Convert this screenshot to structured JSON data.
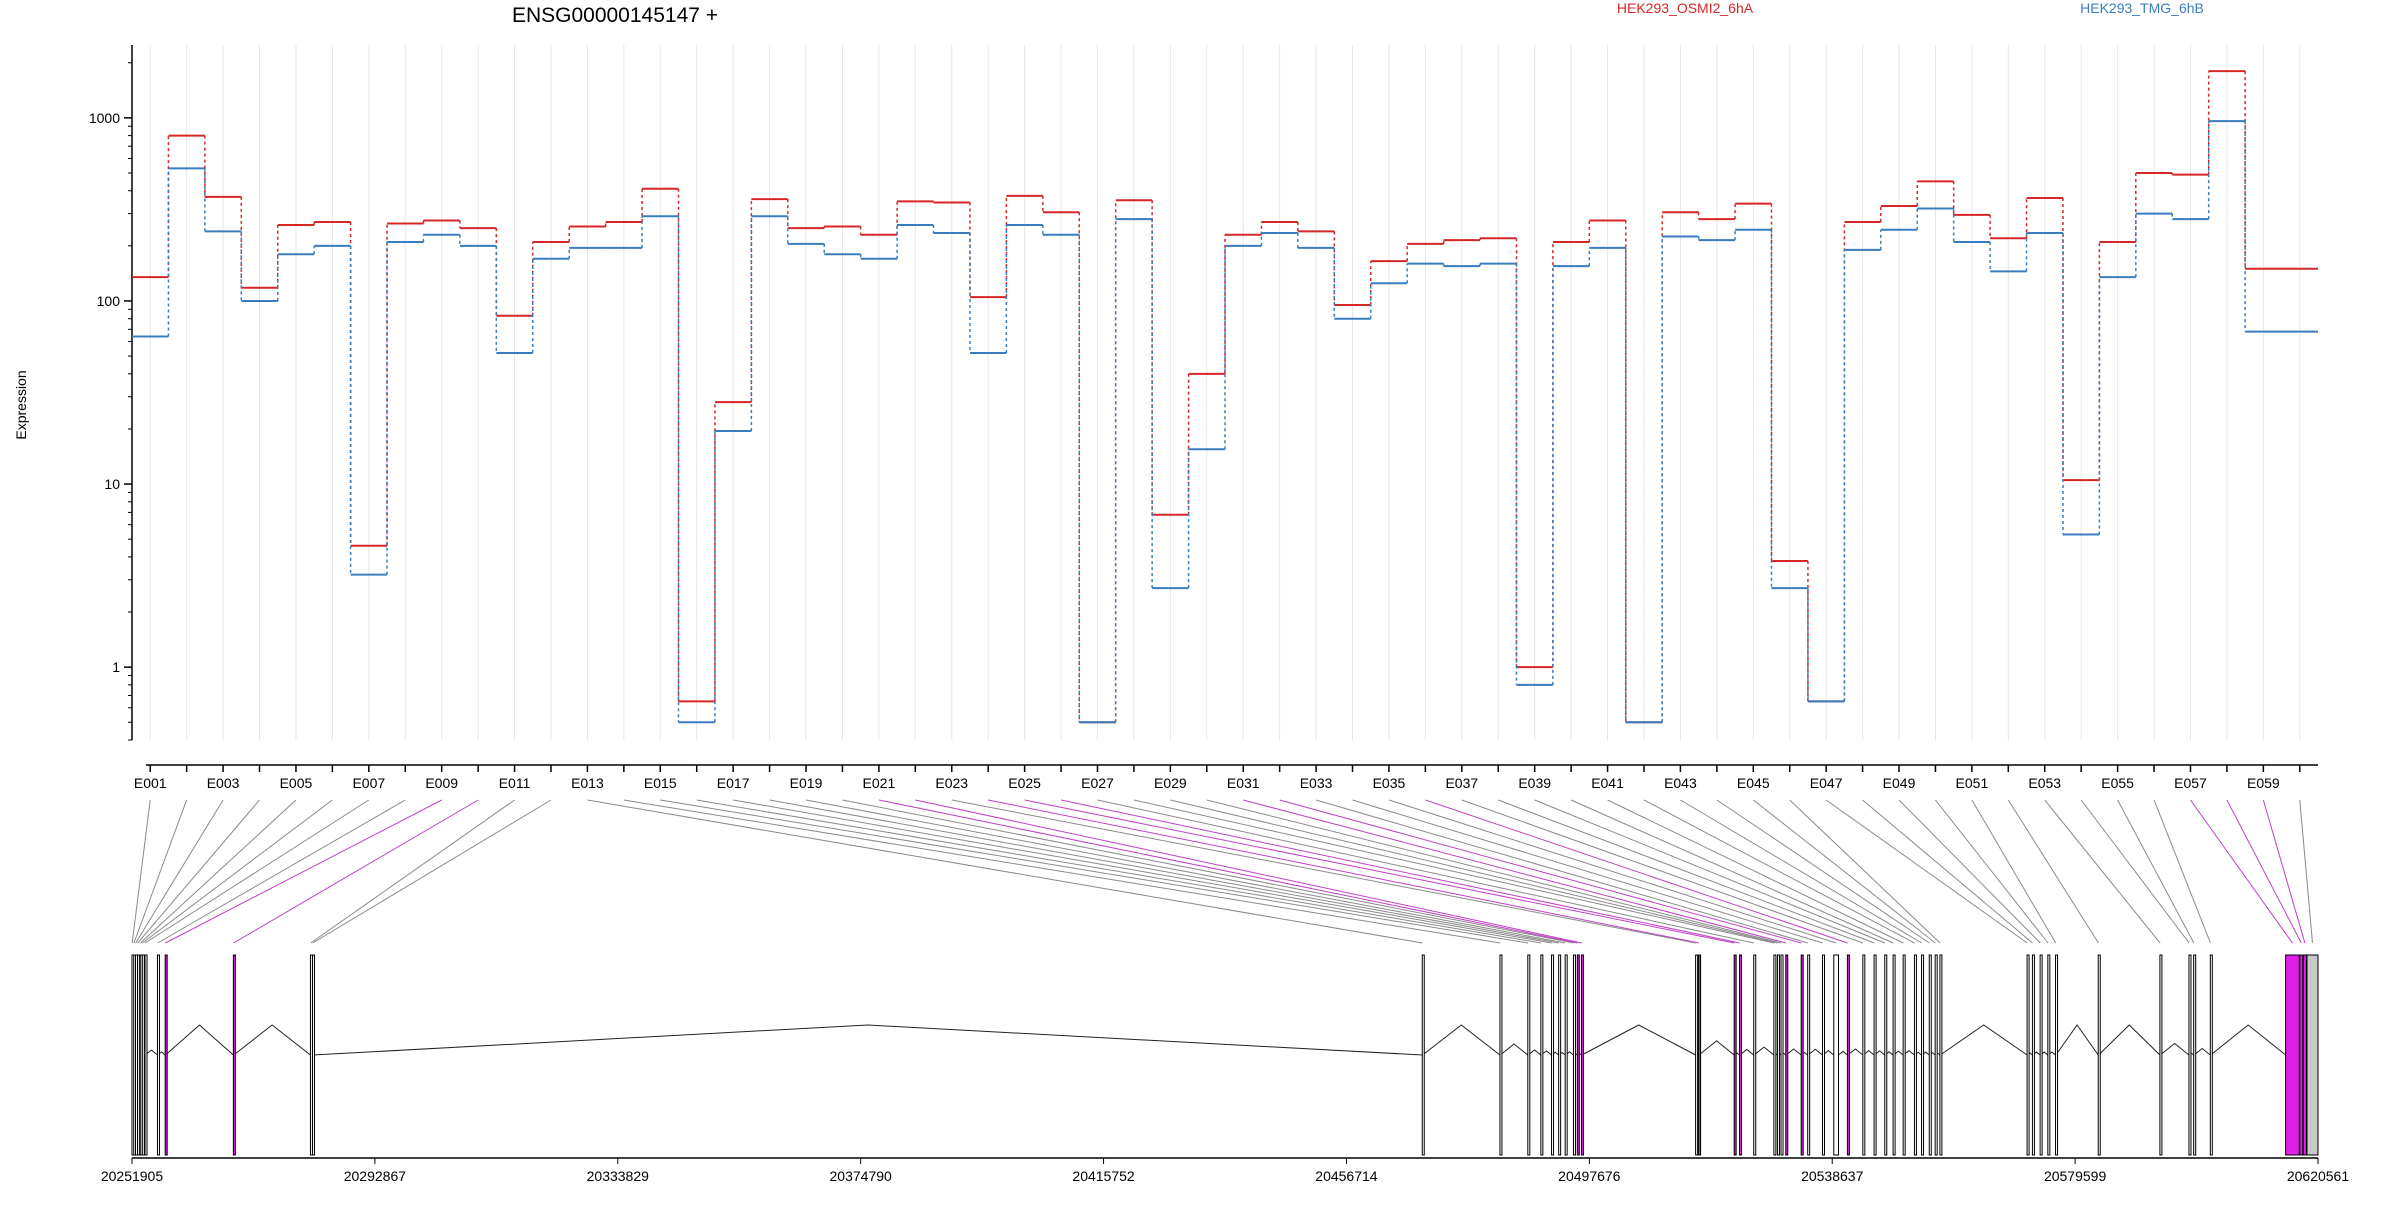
{
  "chart_data": {
    "type": "line",
    "title": "ENSG00000145147 +",
    "ylabel": "Expression",
    "y_scale": "log",
    "ylim": [
      0.4,
      2500
    ],
    "y_ticks": [
      1,
      10,
      100,
      1000
    ],
    "y_tick_labels": [
      "1",
      "10",
      "100",
      "1000"
    ],
    "categories": [
      "E001",
      "E002",
      "E003",
      "E004",
      "E005",
      "E006",
      "E007",
      "E008",
      "E009",
      "E010",
      "E011",
      "E012",
      "E013",
      "E014",
      "E015",
      "E016",
      "E017",
      "E018",
      "E019",
      "E020",
      "E021",
      "E022",
      "E023",
      "E024",
      "E025",
      "E026",
      "E027",
      "E028",
      "E029",
      "E030",
      "E031",
      "E032",
      "E033",
      "E034",
      "E035",
      "E036",
      "E037",
      "E038",
      "E039",
      "E040",
      "E041",
      "E042",
      "E043",
      "E044",
      "E045",
      "E046",
      "E047",
      "E048",
      "E049",
      "E050",
      "E051",
      "E052",
      "E053",
      "E054",
      "E055",
      "E056",
      "E057",
      "E058",
      "E059",
      "E060"
    ],
    "labeled_categories": [
      "E001",
      "E003",
      "E005",
      "E007",
      "E009",
      "E011",
      "E013",
      "E015",
      "E017",
      "E019",
      "E021",
      "E023",
      "E025",
      "E027",
      "E029",
      "E031",
      "E033",
      "E035",
      "E037",
      "E039",
      "E041",
      "E043",
      "E045",
      "E047",
      "E049",
      "E051",
      "E053",
      "E055",
      "E057",
      "E059"
    ],
    "series": [
      {
        "name": "HEK293_OSMI2_6hA",
        "color": "#d62728",
        "values": [
          135,
          800,
          370,
          118,
          260,
          270,
          4.6,
          265,
          275,
          250,
          83,
          210,
          255,
          270,
          410,
          0.65,
          28,
          360,
          250,
          255,
          230,
          350,
          345,
          105,
          375,
          305,
          0.5,
          355,
          6.8,
          40,
          230,
          270,
          240,
          95,
          165,
          205,
          215,
          220,
          1.0,
          210,
          275,
          0.5,
          305,
          280,
          340,
          3.8,
          0.65,
          270,
          330,
          450,
          295,
          220,
          365,
          10.5,
          210,
          500,
          490,
          1800,
          150,
          150
        ]
      },
      {
        "name": "HEK293_TMG_6hB",
        "color": "#3a7dbf",
        "values": [
          64,
          530,
          240,
          100,
          180,
          200,
          3.2,
          210,
          230,
          200,
          52,
          170,
          195,
          195,
          290,
          0.5,
          19.5,
          290,
          205,
          180,
          170,
          260,
          235,
          52,
          260,
          230,
          0.5,
          280,
          2.7,
          15.5,
          200,
          235,
          195,
          80,
          125,
          160,
          155,
          160,
          0.8,
          155,
          195,
          0.5,
          225,
          215,
          245,
          2.7,
          0.65,
          190,
          245,
          320,
          210,
          145,
          235,
          5.3,
          135,
          300,
          280,
          960,
          68,
          68
        ]
      }
    ],
    "highlighted_exons": [
      "E009",
      "E010",
      "E021",
      "E022",
      "E024",
      "E025",
      "E026",
      "E031",
      "E032",
      "E036",
      "E057",
      "E058",
      "E059"
    ],
    "genomic_axis": {
      "ticks": [
        20251905,
        20292867,
        20333829,
        20374790,
        20415752,
        20456714,
        20497676,
        20538637,
        20579599,
        20620561
      ],
      "range": [
        20251905,
        20620561
      ],
      "exons": [
        {
          "id": "E001",
          "start": 20251905,
          "end": 20251960
        },
        {
          "id": "E002",
          "start": 20252200,
          "end": 20252260
        },
        {
          "id": "E003",
          "start": 20252500,
          "end": 20252560
        },
        {
          "id": "E004",
          "start": 20252850,
          "end": 20252900
        },
        {
          "id": "E005",
          "start": 20253300,
          "end": 20253350
        },
        {
          "id": "E006",
          "start": 20253650,
          "end": 20253700
        },
        {
          "id": "E007",
          "start": 20254100,
          "end": 20254150
        },
        {
          "id": "E008",
          "start": 20256200,
          "end": 20256250
        },
        {
          "id": "E009",
          "start": 20257500,
          "end": 20257560
        },
        {
          "id": "E010",
          "start": 20269000,
          "end": 20269060
        },
        {
          "id": "E011",
          "start": 20282000,
          "end": 20282080
        },
        {
          "id": "E012",
          "start": 20282350,
          "end": 20282400
        },
        {
          "id": "E013",
          "start": 20469500,
          "end": 20469560
        },
        {
          "id": "E014",
          "start": 20482600,
          "end": 20482660
        },
        {
          "id": "E015",
          "start": 20487300,
          "end": 20487360
        },
        {
          "id": "E016",
          "start": 20489500,
          "end": 20489560
        },
        {
          "id": "E017",
          "start": 20491300,
          "end": 20491360
        },
        {
          "id": "E018",
          "start": 20492500,
          "end": 20492560
        },
        {
          "id": "E019",
          "start": 20493600,
          "end": 20493660
        },
        {
          "id": "E020",
          "start": 20495000,
          "end": 20495060
        },
        {
          "id": "E021",
          "start": 20495650,
          "end": 20495700
        },
        {
          "id": "E022",
          "start": 20496350,
          "end": 20496400
        },
        {
          "id": "E023",
          "start": 20515600,
          "end": 20515660
        },
        {
          "id": "E024",
          "start": 20516100,
          "end": 20516160
        },
        {
          "id": "E025",
          "start": 20522100,
          "end": 20522160
        },
        {
          "id": "E026",
          "start": 20523000,
          "end": 20523060
        },
        {
          "id": "E027",
          "start": 20525400,
          "end": 20525460
        },
        {
          "id": "E028",
          "start": 20528800,
          "end": 20528900
        },
        {
          "id": "E029",
          "start": 20529400,
          "end": 20529460
        },
        {
          "id": "E030",
          "start": 20530000,
          "end": 20530060
        },
        {
          "id": "E031",
          "start": 20530800,
          "end": 20530860
        },
        {
          "id": "E032",
          "start": 20533400,
          "end": 20533460
        },
        {
          "id": "E033",
          "start": 20534500,
          "end": 20534560
        },
        {
          "id": "E034",
          "start": 20537000,
          "end": 20537060
        },
        {
          "id": "E035",
          "start": 20538900,
          "end": 20539700
        },
        {
          "id": "E036",
          "start": 20541200,
          "end": 20541260
        },
        {
          "id": "E037",
          "start": 20543800,
          "end": 20543860
        },
        {
          "id": "E038",
          "start": 20545700,
          "end": 20545760
        },
        {
          "id": "E039",
          "start": 20547500,
          "end": 20547560
        },
        {
          "id": "E040",
          "start": 20548900,
          "end": 20548960
        },
        {
          "id": "E041",
          "start": 20550600,
          "end": 20550660
        },
        {
          "id": "E042",
          "start": 20552500,
          "end": 20552560
        },
        {
          "id": "E043",
          "start": 20553700,
          "end": 20553760
        },
        {
          "id": "E044",
          "start": 20555000,
          "end": 20555060
        },
        {
          "id": "E045",
          "start": 20556000,
          "end": 20556060
        },
        {
          "id": "E046",
          "start": 20556800,
          "end": 20556860
        },
        {
          "id": "E047",
          "start": 20571500,
          "end": 20571560
        },
        {
          "id": "E048",
          "start": 20572400,
          "end": 20572460
        },
        {
          "id": "E049",
          "start": 20573700,
          "end": 20573760
        },
        {
          "id": "E050",
          "start": 20575000,
          "end": 20575060
        },
        {
          "id": "E051",
          "start": 20576300,
          "end": 20576360
        },
        {
          "id": "E052",
          "start": 20583500,
          "end": 20583560
        },
        {
          "id": "E053",
          "start": 20593900,
          "end": 20593960
        },
        {
          "id": "E054",
          "start": 20598800,
          "end": 20598860
        },
        {
          "id": "E055",
          "start": 20599600,
          "end": 20599660
        },
        {
          "id": "E056",
          "start": 20602400,
          "end": 20602460
        },
        {
          "id": "E057",
          "start": 20615100,
          "end": 20617400
        },
        {
          "id": "E058",
          "start": 20617500,
          "end": 20618000
        },
        {
          "id": "E059",
          "start": 20618100,
          "end": 20618600
        },
        {
          "id": "E060",
          "start": 20618700,
          "end": 20620561
        }
      ]
    },
    "grid": "vertical",
    "legend": "top"
  }
}
